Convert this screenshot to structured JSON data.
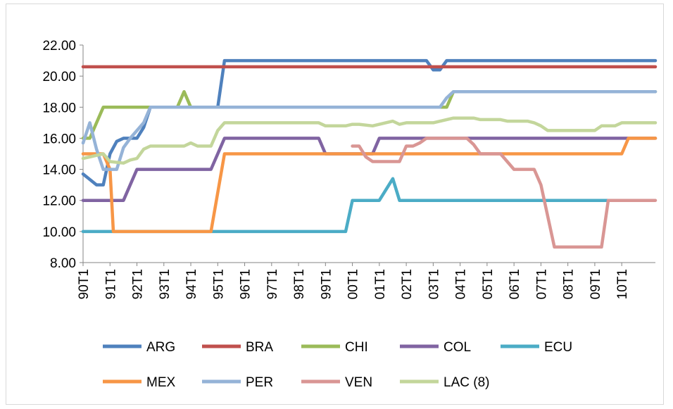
{
  "chart_data": {
    "type": "line",
    "title": "",
    "xlabel": "",
    "ylabel": "",
    "ylim": [
      8,
      22
    ],
    "yticks": [
      "8.00",
      "10.00",
      "12.00",
      "14.00",
      "16.00",
      "18.00",
      "20.00",
      "22.00"
    ],
    "ytick_values": [
      8,
      10,
      12,
      14,
      16,
      18,
      20,
      22
    ],
    "xticks": [
      "90T1",
      "91T1",
      "92T1",
      "93T1",
      "94T1",
      "95T1",
      "96T1",
      "97T1",
      "98T1",
      "99T1",
      "00T1",
      "01T1",
      "02T1",
      "03T1",
      "04T1",
      "05T1",
      "06T1",
      "07T1",
      "08T1",
      "09T1",
      "10T1"
    ],
    "x_start": "90T1",
    "x_end": "11T2",
    "periods_per_year": 4,
    "grid": false,
    "legend_position": "bottom",
    "series": [
      {
        "name": "ARG",
        "color": "#4f81bd",
        "points": [
          [
            "90T1",
            13.7
          ],
          [
            "90T3",
            13.0
          ],
          [
            "90T4",
            13.0
          ],
          [
            "91T1",
            15.0
          ],
          [
            "91T2",
            15.8
          ],
          [
            "91T3",
            16.0
          ],
          [
            "92T1",
            16.0
          ],
          [
            "92T2",
            16.7
          ],
          [
            "92T3",
            18.0
          ],
          [
            "94T4",
            18.0
          ],
          [
            "95T1",
            18.0
          ],
          [
            "95T2",
            21.0
          ],
          [
            "02T4",
            21.0
          ],
          [
            "03T1",
            20.4
          ],
          [
            "03T2",
            20.4
          ],
          [
            "03T3",
            21.0
          ],
          [
            "11T2",
            21.0
          ]
        ]
      },
      {
        "name": "BRA",
        "color": "#c0504d",
        "points": [
          [
            "90T1",
            20.6
          ],
          [
            "11T2",
            20.6
          ]
        ]
      },
      {
        "name": "CHI",
        "color": "#9bbb59",
        "points": [
          [
            "90T1",
            16.0
          ],
          [
            "90T2",
            16.0
          ],
          [
            "90T4",
            18.0
          ],
          [
            "93T3",
            18.0
          ],
          [
            "93T4",
            19.0
          ],
          [
            "94T1",
            18.0
          ],
          [
            "03T3",
            18.0
          ],
          [
            "03T4",
            19.0
          ],
          [
            "11T2",
            19.0
          ]
        ]
      },
      {
        "name": "COL",
        "color": "#8064a2",
        "points": [
          [
            "90T1",
            12.0
          ],
          [
            "91T3",
            12.0
          ],
          [
            "92T1",
            14.0
          ],
          [
            "94T4",
            14.0
          ],
          [
            "95T2",
            16.0
          ],
          [
            "98T4",
            16.0
          ],
          [
            "99T1",
            15.0
          ],
          [
            "00T4",
            15.0
          ],
          [
            "01T1",
            16.0
          ],
          [
            "11T2",
            16.0
          ]
        ]
      },
      {
        "name": "ECU",
        "color": "#4bacc6",
        "points": [
          [
            "90T1",
            10.0
          ],
          [
            "99T4",
            10.0
          ],
          [
            "00T1",
            12.0
          ],
          [
            "01T1",
            12.0
          ],
          [
            "01T3",
            13.4
          ],
          [
            "01T4",
            12.0
          ],
          [
            "09T3",
            12.0
          ]
        ]
      },
      {
        "name": "MEX",
        "color": "#f79646",
        "points": [
          [
            "90T1",
            15.0
          ],
          [
            "90T4",
            15.0
          ],
          [
            "91T1",
            14.0
          ],
          [
            "91T1.5",
            10.0
          ],
          [
            "94T4",
            10.0
          ],
          [
            "95T2",
            15.0
          ],
          [
            "10T1",
            15.0
          ],
          [
            "10T2",
            16.0
          ],
          [
            "11T2",
            16.0
          ]
        ]
      },
      {
        "name": "PER",
        "color": "#95b3d7",
        "points": [
          [
            "90T1",
            15.7
          ],
          [
            "90T2",
            17.0
          ],
          [
            "90T3",
            15.3
          ],
          [
            "90T4",
            14.0
          ],
          [
            "91T2",
            14.0
          ],
          [
            "91T3",
            15.4
          ],
          [
            "91T4",
            16.0
          ],
          [
            "92T2",
            17.0
          ],
          [
            "92T3",
            18.0
          ],
          [
            "03T2",
            18.0
          ],
          [
            "03T3",
            18.6
          ],
          [
            "03T4",
            19.0
          ],
          [
            "11T2",
            19.0
          ]
        ]
      },
      {
        "name": "VEN",
        "color": "#d99694",
        "points": [
          [
            "00T1",
            15.5
          ],
          [
            "00T2",
            15.5
          ],
          [
            "00T3",
            14.8
          ],
          [
            "00T4",
            14.5
          ],
          [
            "01T4",
            14.5
          ],
          [
            "02T1",
            15.5
          ],
          [
            "02T2",
            15.5
          ],
          [
            "02T3",
            15.7
          ],
          [
            "02T4",
            16.0
          ],
          [
            "04T2",
            16.0
          ],
          [
            "04T3",
            15.6
          ],
          [
            "04T4",
            15.0
          ],
          [
            "05T3",
            15.0
          ],
          [
            "06T1",
            14.0
          ],
          [
            "06T4",
            14.0
          ],
          [
            "07T1",
            13.0
          ],
          [
            "07T3",
            9.0
          ],
          [
            "09T2",
            9.0
          ],
          [
            "09T3",
            12.0
          ],
          [
            "11T2",
            12.0
          ]
        ]
      },
      {
        "name": "LAC (8)",
        "color": "#c3d69b",
        "points": [
          [
            "90T1",
            14.7
          ],
          [
            "90T3",
            14.9
          ],
          [
            "90T4",
            15.0
          ],
          [
            "91T1",
            14.5
          ],
          [
            "91T3",
            14.4
          ],
          [
            "91T4",
            14.6
          ],
          [
            "92T1",
            14.7
          ],
          [
            "92T2",
            15.3
          ],
          [
            "92T3",
            15.5
          ],
          [
            "93T4",
            15.5
          ],
          [
            "94T1",
            15.7
          ],
          [
            "94T2",
            15.5
          ],
          [
            "94T4",
            15.5
          ],
          [
            "95T1",
            16.5
          ],
          [
            "95T2",
            17.0
          ],
          [
            "98T4",
            17.0
          ],
          [
            "99T1",
            16.8
          ],
          [
            "99T4",
            16.8
          ],
          [
            "00T1",
            16.9
          ],
          [
            "00T2",
            16.9
          ],
          [
            "00T4",
            16.8
          ],
          [
            "01T1",
            16.9
          ],
          [
            "01T3",
            17.1
          ],
          [
            "01T4",
            16.9
          ],
          [
            "02T1",
            17.0
          ],
          [
            "02T4",
            17.0
          ],
          [
            "03T1",
            17.0
          ],
          [
            "03T3",
            17.2
          ],
          [
            "03T4",
            17.3
          ],
          [
            "04T3",
            17.3
          ],
          [
            "04T4",
            17.2
          ],
          [
            "05T3",
            17.2
          ],
          [
            "05T4",
            17.1
          ],
          [
            "06T3",
            17.1
          ],
          [
            "06T4",
            17.0
          ],
          [
            "07T1",
            16.8
          ],
          [
            "07T2",
            16.5
          ],
          [
            "09T1",
            16.5
          ],
          [
            "09T2",
            16.8
          ],
          [
            "09T4",
            16.8
          ],
          [
            "10T1",
            17.0
          ],
          [
            "11T2",
            17.0
          ]
        ]
      }
    ]
  }
}
